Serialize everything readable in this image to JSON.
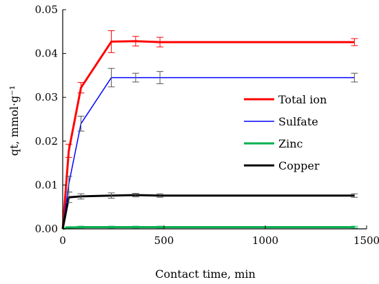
{
  "chart_data": {
    "type": "line",
    "xlabel": "Contact time, min",
    "ylabel": "qt, mmol·g⁻¹",
    "xlim": [
      0,
      1500
    ],
    "ylim": [
      0,
      0.05
    ],
    "x_ticks": [
      "0",
      "500",
      "1000",
      "1500"
    ],
    "y_ticks": [
      "0.00",
      "0.01",
      "0.02",
      "0.03",
      "0.04",
      "0.05"
    ],
    "grid": false,
    "legend_position": "right",
    "series": [
      {
        "name": "Total ion",
        "color": "#ff0000",
        "width": 3,
        "x": [
          0,
          30,
          90,
          240,
          360,
          480,
          1440
        ],
        "y": [
          0,
          0.0178,
          0.0322,
          0.0427,
          0.0428,
          0.0426,
          0.0426
        ],
        "err": [
          0,
          0.0015,
          0.0012,
          0.0025,
          0.0011,
          0.0011,
          0.0008
        ]
      },
      {
        "name": "Sulfate",
        "color": "#0000ff",
        "width": 1.5,
        "x": [
          0,
          30,
          90,
          240,
          360,
          480,
          1440
        ],
        "y": [
          0,
          0.0102,
          0.024,
          0.0345,
          0.0345,
          0.0345,
          0.0345
        ],
        "err": [
          0,
          0.0018,
          0.0017,
          0.0021,
          0.001,
          0.0014,
          0.001
        ]
      },
      {
        "name": "Zinc",
        "color": "#00b050",
        "width": 3,
        "x": [
          0,
          30,
          90,
          240,
          360,
          480,
          1440
        ],
        "y": [
          0,
          0.0003,
          0.0004,
          0.0004,
          0.0004,
          0.0004,
          0.0004
        ],
        "err": [
          0,
          0.0002,
          0.0002,
          0.0002,
          0.0002,
          0.0002,
          0.0002
        ]
      },
      {
        "name": "Copper",
        "color": "#000000",
        "width": 3,
        "x": [
          0,
          30,
          90,
          240,
          360,
          480,
          1440
        ],
        "y": [
          0,
          0.0072,
          0.0074,
          0.0076,
          0.0077,
          0.0076,
          0.0076
        ],
        "err": [
          0,
          0.0012,
          0.0006,
          0.0006,
          0.0004,
          0.0004,
          0.0004
        ]
      }
    ]
  }
}
